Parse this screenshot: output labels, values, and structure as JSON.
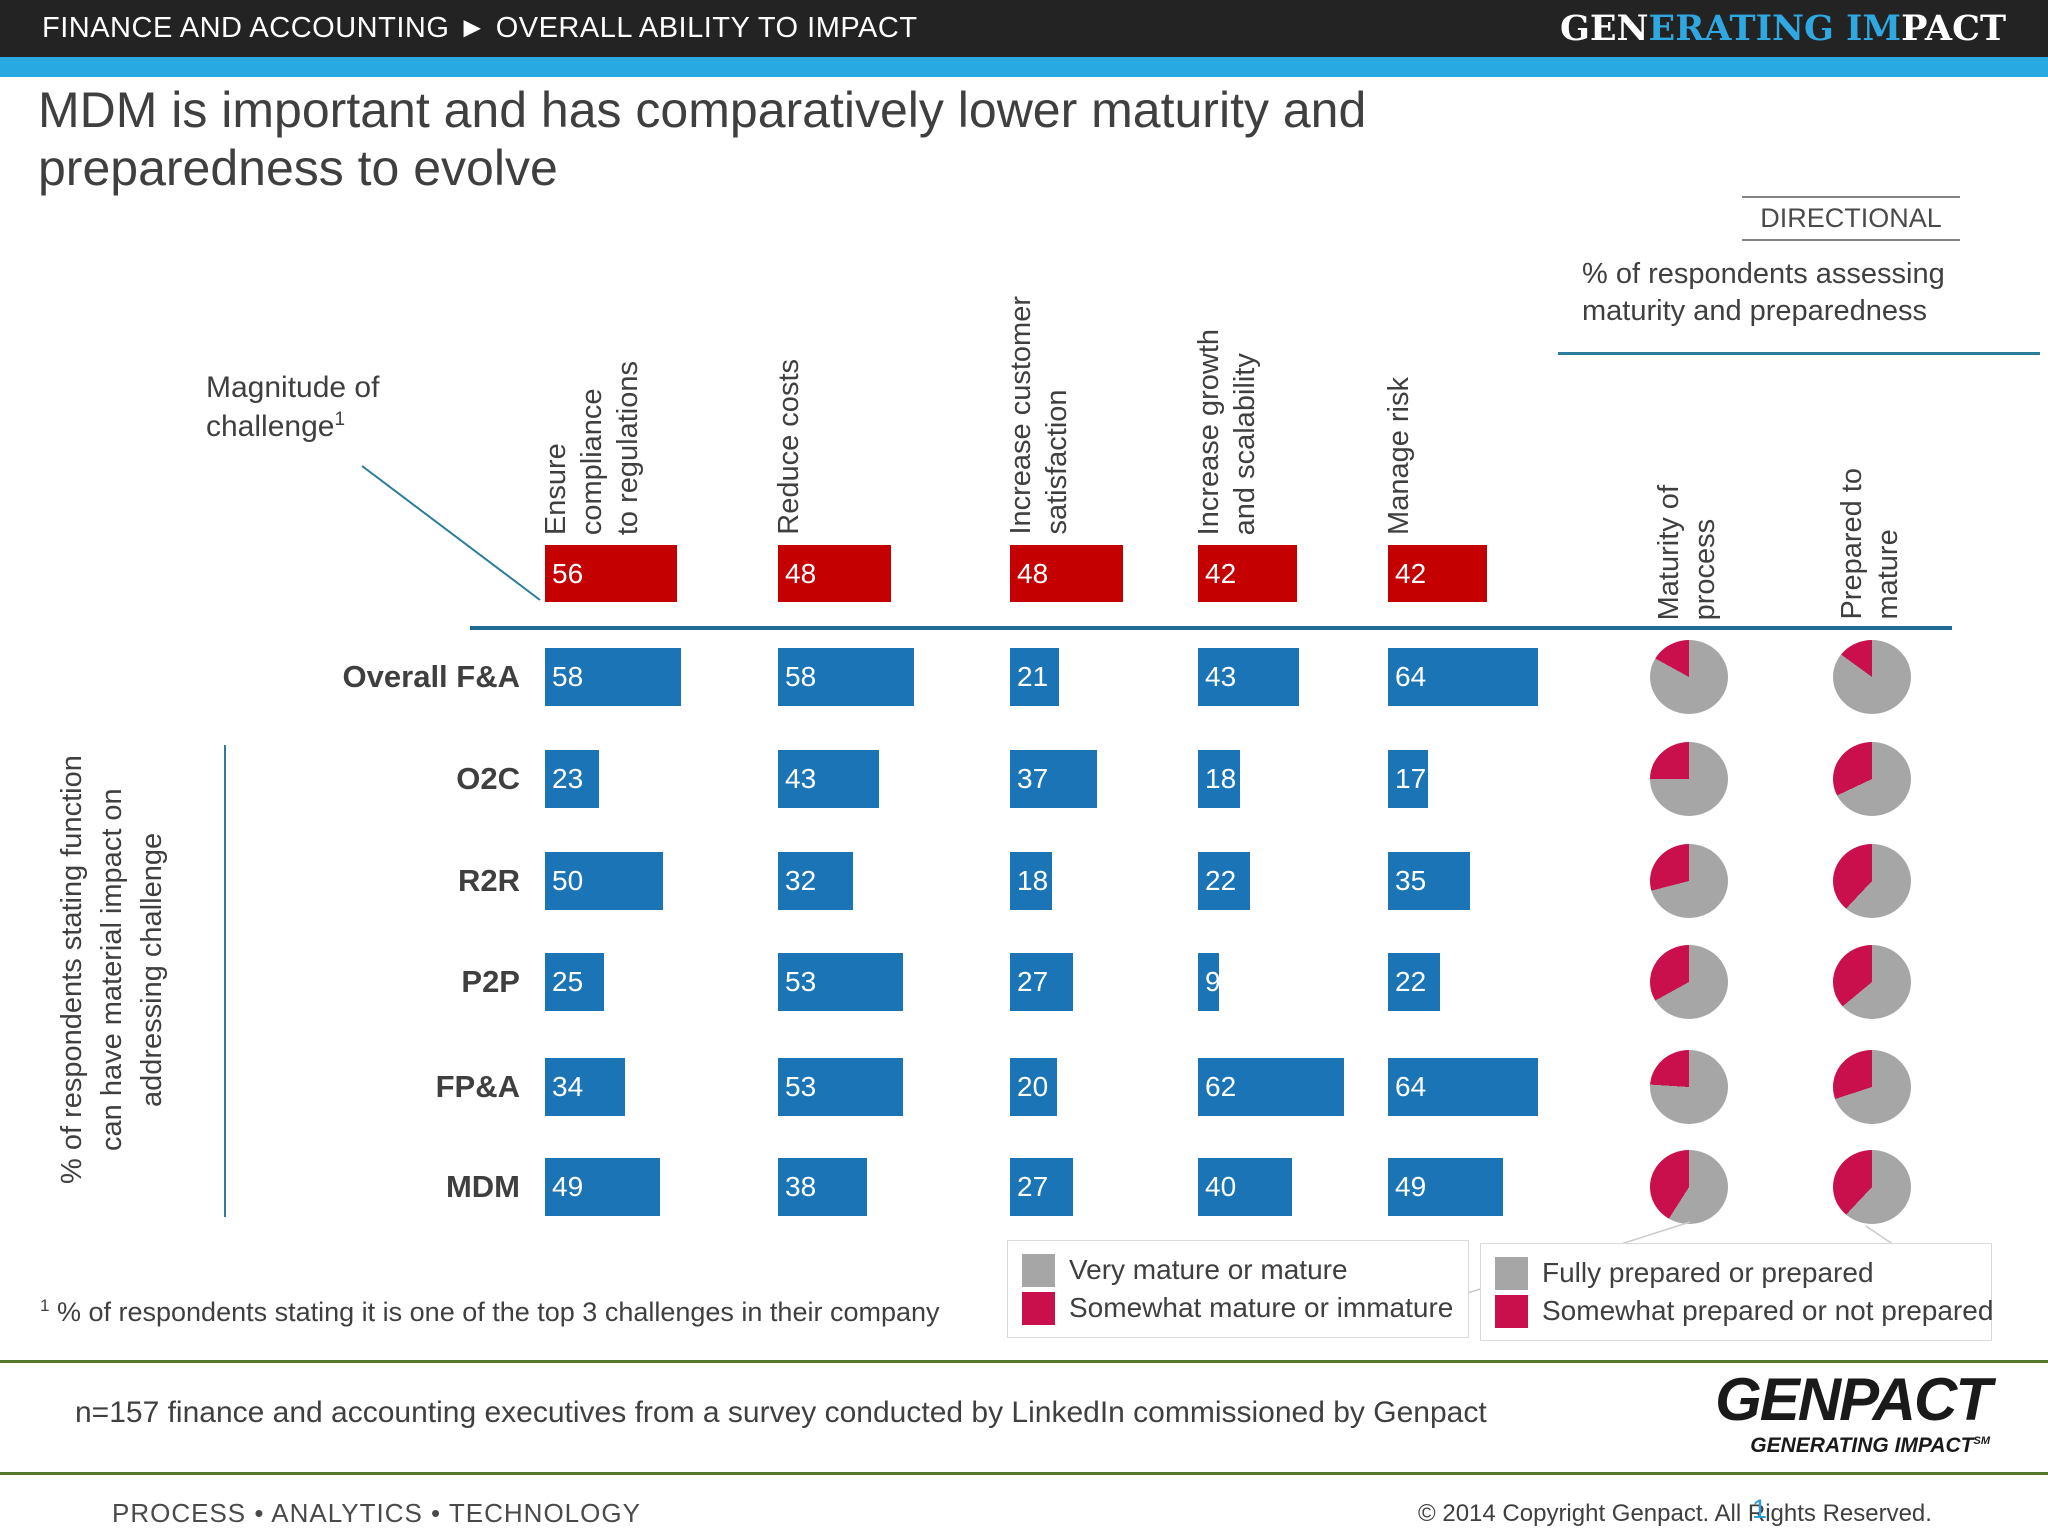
{
  "header": {
    "breadcrumb": "FINANCE AND ACCOUNTING ► OVERALL ABILITY TO IMPACT",
    "logo": {
      "part_white1": "GEN",
      "part_blue": "ERATING IM",
      "part_white2": "PACT"
    }
  },
  "title": "MDM is important and has comparatively lower maturity and preparedness to evolve",
  "directional_label": "DIRECTIONAL",
  "assess_note": "% of respondents assessing\nmaturity and preparedness",
  "magnitude": {
    "line1": "Magnitude of",
    "line2": "challenge",
    "sup": "1"
  },
  "left_axis_label": "% of respondents stating function\ncan have material impact on\naddressing challenge",
  "chart_data": {
    "type": "bar",
    "units": "% of respondents (0–100)",
    "columns": [
      "Ensure\ncompliance\nto regulations",
      "Reduce costs",
      "Increase customer\nsatisfaction",
      "Increase growth\nand scalability",
      "Manage risk"
    ],
    "magnitude_values": [
      56,
      48,
      48,
      42,
      42
    ],
    "rows": [
      {
        "label": "Overall F&A",
        "values": [
          58,
          58,
          21,
          43,
          64
        ],
        "maturity_somewhat_pct": 17,
        "prepared_somewhat_pct": 15
      },
      {
        "label": "O2C",
        "values": [
          23,
          43,
          37,
          18,
          17
        ],
        "maturity_somewhat_pct": 25,
        "prepared_somewhat_pct": 32
      },
      {
        "label": "R2R",
        "values": [
          50,
          32,
          18,
          22,
          35
        ],
        "maturity_somewhat_pct": 29,
        "prepared_somewhat_pct": 38
      },
      {
        "label": "P2P",
        "values": [
          25,
          53,
          27,
          9,
          22
        ],
        "maturity_somewhat_pct": 33,
        "prepared_somewhat_pct": 36
      },
      {
        "label": "FP&A",
        "values": [
          34,
          53,
          20,
          62,
          64
        ],
        "maturity_somewhat_pct": 24,
        "prepared_somewhat_pct": 30
      },
      {
        "label": "MDM",
        "values": [
          49,
          38,
          27,
          40,
          49
        ],
        "maturity_somewhat_pct": 41,
        "prepared_somewhat_pct": 38
      }
    ],
    "pie_columns": [
      "Maturity of\nprocess",
      "Prepared to\nmature"
    ],
    "colors": {
      "magnitude_bar": "#C40000",
      "impact_bar": "#1B74B5",
      "pie_gray": "#A6A6A6",
      "pie_crimson": "#C9104C",
      "accent_teal": "#2C7C9C",
      "accent_blue_stripe": "#29A9E1",
      "accent_green": "#527A2A"
    }
  },
  "legend": {
    "maturity": [
      {
        "color": "#A6A6A6",
        "label": "Very mature or mature"
      },
      {
        "color": "#C9104C",
        "label": "Somewhat mature or immature"
      }
    ],
    "prepared": [
      {
        "color": "#A6A6A6",
        "label": "Fully prepared or prepared"
      },
      {
        "color": "#C9104C",
        "label": "Somewhat prepared or not prepared"
      }
    ]
  },
  "footnote": {
    "sup": "1",
    "text": " % of respondents stating it is one of the top 3 challenges in their company"
  },
  "source_note": "n=157 finance and accounting executives from a survey conducted by LinkedIn commissioned by Genpact",
  "genpact_logo": {
    "name": "GENPACT",
    "tagline": "GENERATING IMPACT",
    "sm": "SM"
  },
  "footer": {
    "left": "PROCESS • ANALYTICS • TECHNOLOGY",
    "copyright": "© 2014 Copyright Genpact. All Rights Reserved.",
    "page": "1"
  }
}
